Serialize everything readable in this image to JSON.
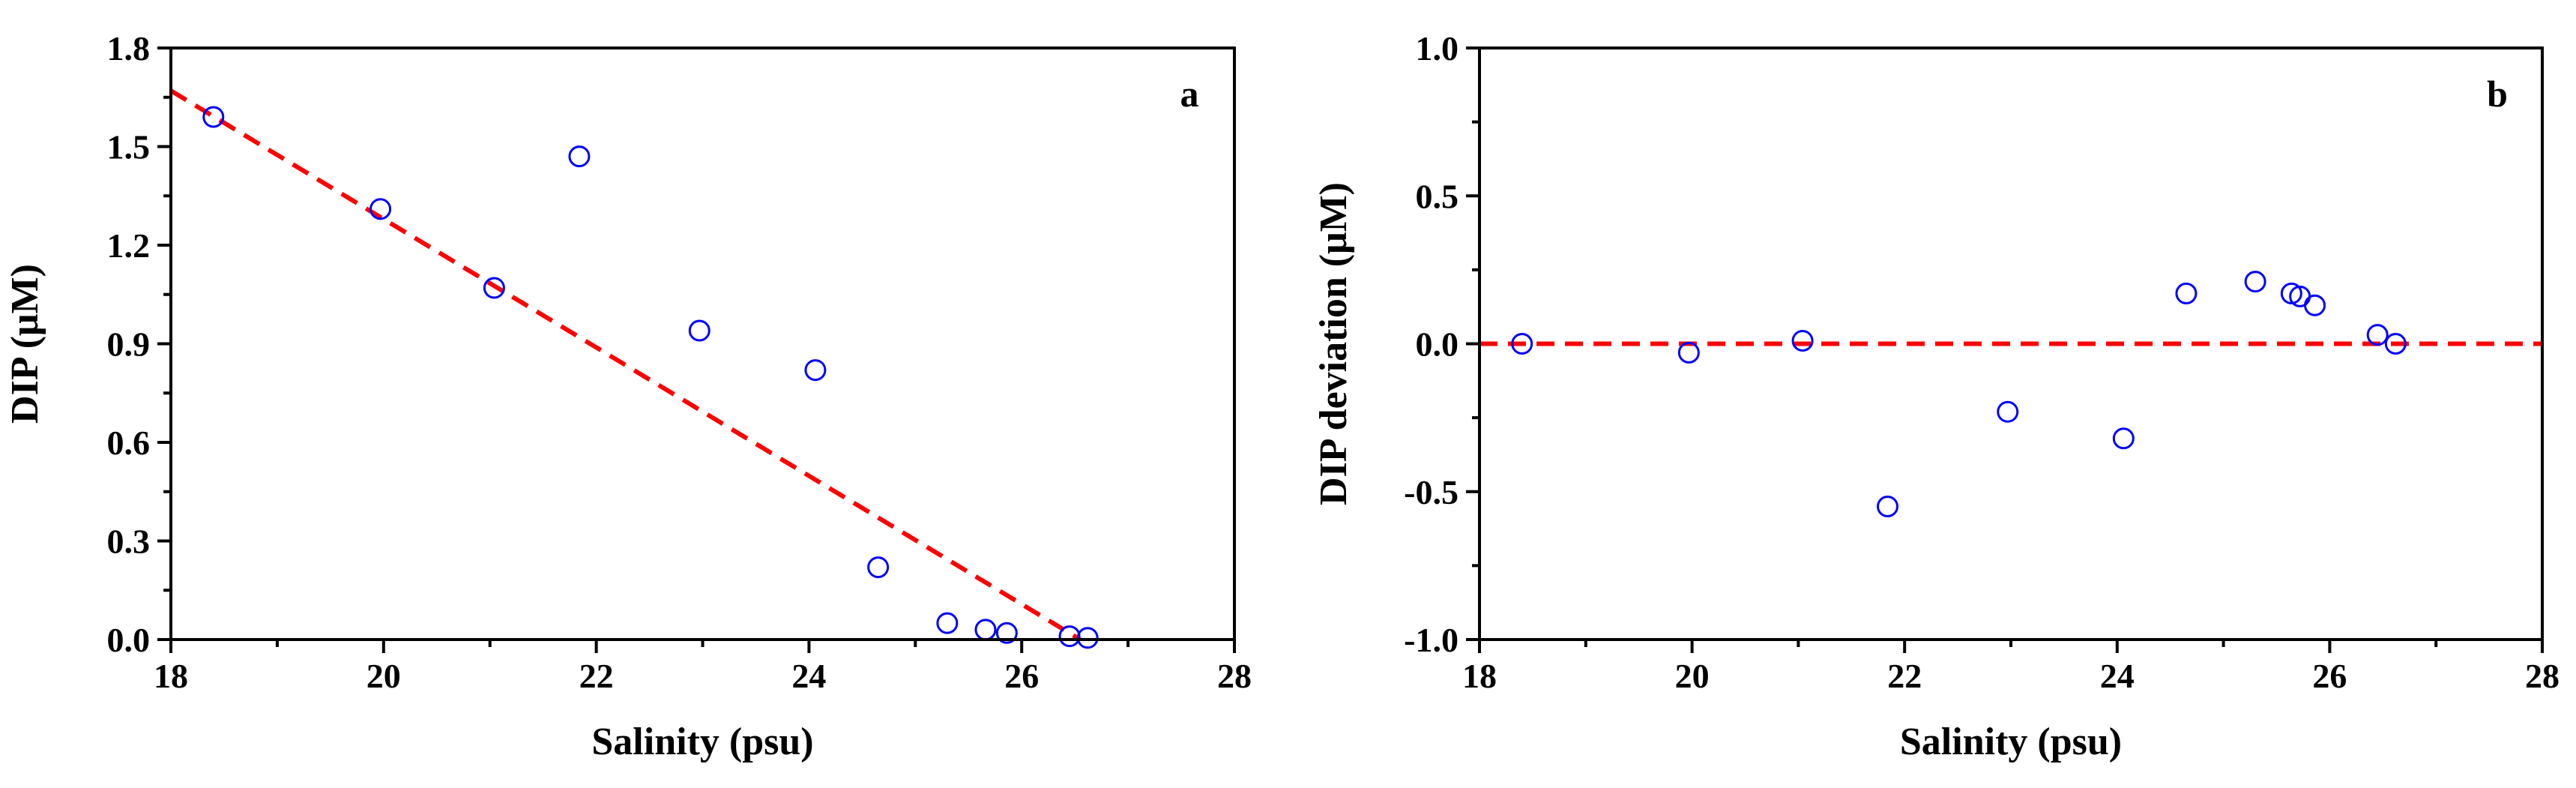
{
  "chart_data": [
    {
      "type": "scatter",
      "panel_label": "a",
      "xlabel": "Salinity (psu)",
      "ylabel": "DIP (μM)",
      "xlim": [
        18,
        28
      ],
      "ylim": [
        0,
        1.8
      ],
      "xticks": [
        "18",
        "20",
        "22",
        "24",
        "26",
        "28"
      ],
      "yticks": [
        "0.0",
        "0.3",
        "0.6",
        "0.9",
        "1.2",
        "1.5",
        "1.8"
      ],
      "points": [
        {
          "x": 18.4,
          "y": 1.59
        },
        {
          "x": 19.97,
          "y": 1.31
        },
        {
          "x": 21.04,
          "y": 1.07
        },
        {
          "x": 21.84,
          "y": 1.47
        },
        {
          "x": 22.97,
          "y": 0.94
        },
        {
          "x": 24.06,
          "y": 0.82
        },
        {
          "x": 24.65,
          "y": 0.22
        },
        {
          "x": 25.3,
          "y": 0.05
        },
        {
          "x": 25.66,
          "y": 0.03
        },
        {
          "x": 25.86,
          "y": 0.02
        },
        {
          "x": 26.45,
          "y": 0.01
        },
        {
          "x": 26.62,
          "y": 0.005
        }
      ],
      "reference_line": {
        "x": [
          18,
          26.55
        ],
        "y": [
          1.67,
          0
        ]
      },
      "point_color": "#0000ff",
      "line_color": "#ff0000",
      "grid": false
    },
    {
      "type": "scatter",
      "panel_label": "b",
      "xlabel": "Salinity (psu)",
      "ylabel": "DIP deviation (μM)",
      "xlim": [
        18,
        28
      ],
      "ylim": [
        -1.0,
        1.0
      ],
      "xticks": [
        "18",
        "20",
        "22",
        "24",
        "26",
        "28"
      ],
      "yticks": [
        "-1.0",
        "-0.5",
        "0.0",
        "0.5",
        "1.0"
      ],
      "points": [
        {
          "x": 18.4,
          "y": 0.0
        },
        {
          "x": 19.97,
          "y": -0.03
        },
        {
          "x": 21.04,
          "y": 0.01
        },
        {
          "x": 21.84,
          "y": -0.55
        },
        {
          "x": 22.97,
          "y": -0.23
        },
        {
          "x": 24.06,
          "y": -0.32
        },
        {
          "x": 24.65,
          "y": 0.17
        },
        {
          "x": 25.3,
          "y": 0.21
        },
        {
          "x": 25.64,
          "y": 0.17
        },
        {
          "x": 25.72,
          "y": 0.16
        },
        {
          "x": 25.86,
          "y": 0.13
        },
        {
          "x": 26.45,
          "y": 0.03
        },
        {
          "x": 26.62,
          "y": 0.0
        }
      ],
      "reference_line": {
        "x": [
          18,
          28
        ],
        "y": [
          0,
          0
        ]
      },
      "point_color": "#0000ff",
      "line_color": "#ff0000",
      "grid": false
    }
  ]
}
